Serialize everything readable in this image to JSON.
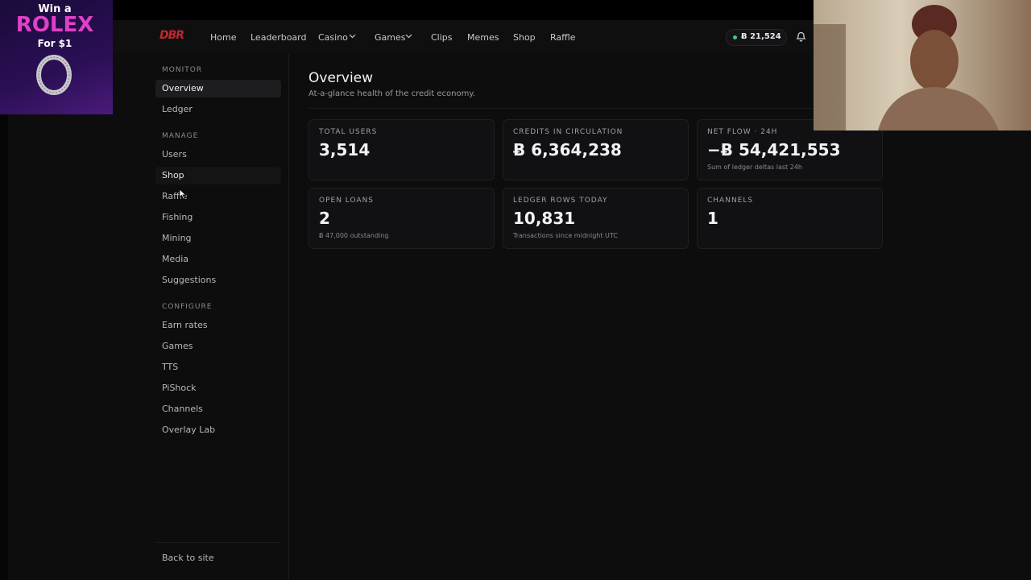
{
  "ad": {
    "line1": "Win a",
    "brand": "ROLEX",
    "line3": "For $1"
  },
  "header": {
    "logo": "DBR",
    "nav": [
      "Home",
      "Leaderboard",
      "Casino",
      "Games",
      "Clips",
      "Memes",
      "Shop",
      "Raffle"
    ],
    "balance": "Ƀ 21,524"
  },
  "sidebar": {
    "sections": [
      {
        "title": "MONITOR",
        "items": [
          "Overview",
          "Ledger"
        ]
      },
      {
        "title": "MANAGE",
        "items": [
          "Users",
          "Shop",
          "Raffle",
          "Fishing",
          "Mining",
          "Media",
          "Suggestions"
        ]
      },
      {
        "title": "CONFIGURE",
        "items": [
          "Earn rates",
          "Games",
          "TTS",
          "PiShock",
          "Channels",
          "Overlay Lab"
        ]
      }
    ],
    "footer": "Back to site"
  },
  "main": {
    "title": "Overview",
    "subtitle": "At-a-glance health of the credit economy.",
    "cards": [
      {
        "label": "TOTAL USERS",
        "value": "3,514"
      },
      {
        "label": "CREDITS IN CIRCULATION",
        "value": "Ƀ 6,364,238"
      },
      {
        "label": "NET FLOW · 24H",
        "value": "−Ƀ 54,421,553",
        "note": "Sum of ledger deltas last 24h"
      },
      {
        "label": "OPEN LOANS",
        "value": "2",
        "note": "Ƀ 47,000 outstanding"
      },
      {
        "label": "LEDGER ROWS TODAY",
        "value": "10,831",
        "note": "Transactions since midnight UTC"
      },
      {
        "label": "CHANNELS",
        "value": "1"
      }
    ]
  }
}
